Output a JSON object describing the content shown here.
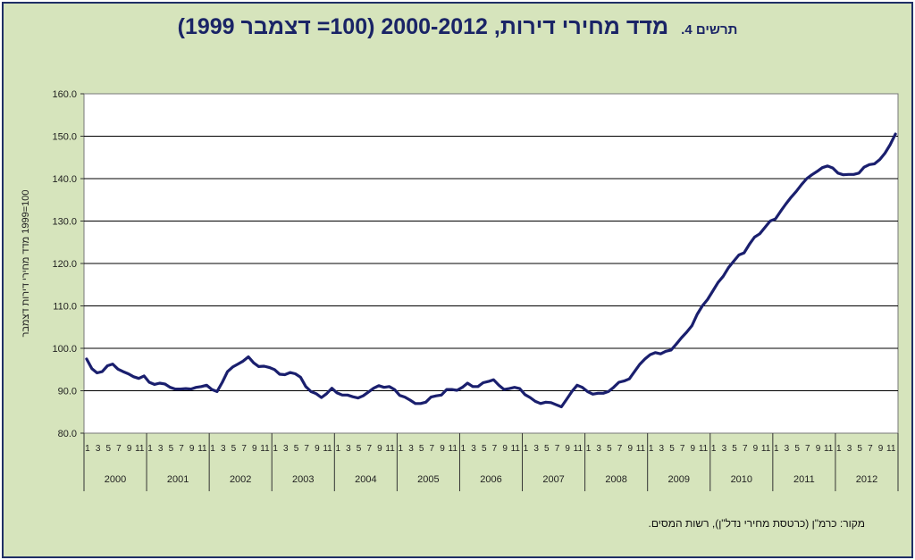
{
  "figure": {
    "number_label": "תרשים 4.",
    "title": "מדד מחירי דירות, 2000-2012 (100= דצמבר 1999)",
    "source": "מקור: כרמ\"ן (כרטסת מחירי נדל\"ן), רשות המסים."
  },
  "colors": {
    "background": "#d6e4bc",
    "plot_area": "#ffffff",
    "line": "#1a1f6e",
    "border": "#1f2f66"
  },
  "chart_data": {
    "type": "line",
    "title": "מדד מחירי דירות, 2000-2012 (100= דצמבר 1999)",
    "ylabel": "100=1999 מדד מחירי דירות דצמבר",
    "xlabel": "",
    "ylim": [
      80,
      160
    ],
    "yticks": [
      "80.0",
      "90.0",
      "100.0",
      "110.0",
      "120.0",
      "130.0",
      "140.0",
      "150.0",
      "160.0"
    ],
    "years": [
      "2000",
      "2001",
      "2002",
      "2003",
      "2004",
      "2005",
      "2006",
      "2007",
      "2008",
      "2009",
      "2010",
      "2011",
      "2012"
    ],
    "month_ticks": [
      "1",
      "3",
      "5",
      "7",
      "9",
      "11"
    ],
    "grid": true,
    "legend": "none",
    "series": [
      {
        "values": [
          97.5,
          95.2,
          94.2,
          94.5,
          95.9,
          96.3,
          95.1,
          94.5,
          94.0,
          93.3,
          92.9,
          93.5,
          92.0,
          91.5,
          91.8,
          91.6,
          90.8,
          90.4,
          90.4,
          90.5,
          90.4,
          90.8,
          91.0,
          91.3,
          90.3,
          89.8,
          92.0,
          94.5,
          95.6,
          96.3,
          97.0,
          98.0,
          96.6,
          95.7,
          95.8,
          95.5,
          95.0,
          93.9,
          93.8,
          94.3,
          94.0,
          93.2,
          91.0,
          89.8,
          89.3,
          88.4,
          89.3,
          90.6,
          89.5,
          89.0,
          89.0,
          88.6,
          88.3,
          88.8,
          89.7,
          90.6,
          91.2,
          90.8,
          91.0,
          90.3,
          88.9,
          88.5,
          87.8,
          87.0,
          87.0,
          87.3,
          88.5,
          88.8,
          89.0,
          90.3,
          90.3,
          90.1,
          90.8,
          91.8,
          91.0,
          91.0,
          91.9,
          92.2,
          92.6,
          91.3,
          90.3,
          90.5,
          90.8,
          90.5,
          89.1,
          88.4,
          87.5,
          87.0,
          87.3,
          87.2,
          86.7,
          86.2,
          88.0,
          89.8,
          91.3,
          90.8,
          89.8,
          89.2,
          89.4,
          89.4,
          89.8,
          90.8,
          92.0,
          92.3,
          92.8,
          94.5,
          96.2,
          97.5,
          98.5,
          99.0,
          98.7,
          99.3,
          99.6,
          101.0,
          102.5,
          103.8,
          105.3,
          108.0,
          110.0,
          111.5,
          113.5,
          115.5,
          117.0,
          119.0,
          120.5,
          122.0,
          122.5,
          124.5,
          126.2,
          127.0,
          128.5,
          130.0,
          130.5,
          132.3,
          134.0,
          135.6,
          137.0,
          138.6,
          140.0,
          140.9,
          141.7,
          142.6,
          143.0,
          142.5,
          141.3,
          140.9,
          141.0,
          141.0,
          141.3,
          142.7,
          143.3,
          143.5,
          144.5,
          146.0,
          148.0,
          150.5
        ]
      }
    ]
  }
}
